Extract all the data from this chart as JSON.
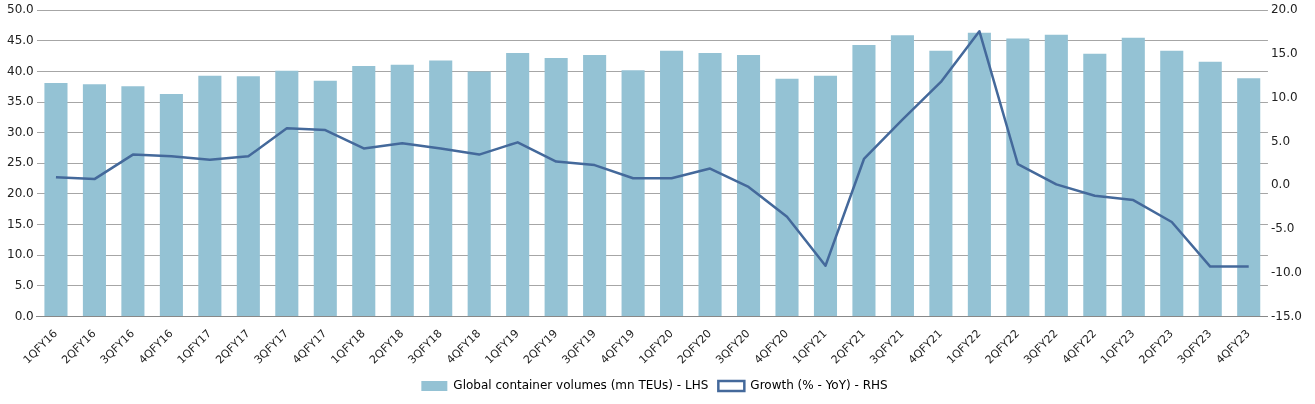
{
  "chart_data": {
    "type": "bar",
    "categories": [
      "1QFY16",
      "2QFY16",
      "3QFY16",
      "4QFY16",
      "1QFY17",
      "2QFY17",
      "3QFY17",
      "4QFY17",
      "1QFY18",
      "2QFY18",
      "3QFY18",
      "4QFY18",
      "1QFY19",
      "2QFY19",
      "3QFY19",
      "4QFY19",
      "1QFY20",
      "2QFY20",
      "3QFY20",
      "4QFY20",
      "1QFY21",
      "2QFY21",
      "3QFY21",
      "4QFY21",
      "1QFY22",
      "2QFY22",
      "3QFY22",
      "4QFY22",
      "1QFY23",
      "2QFY23",
      "3QFY23",
      "4QFY23"
    ],
    "series": [
      {
        "name": "Global container volumes (mn TEUs) - LHS",
        "color": "#94c2d4",
        "values": [
          38.1,
          37.9,
          37.6,
          36.3,
          39.3,
          39.2,
          40.1,
          38.5,
          40.9,
          41.1,
          41.8,
          40.0,
          43.0,
          42.2,
          42.7,
          40.2,
          43.4,
          43.0,
          42.7,
          38.8,
          39.3,
          44.3,
          45.9,
          43.4,
          46.3,
          45.4,
          46.0,
          42.9,
          45.5,
          43.4,
          41.6,
          38.9
        ]
      },
      {
        "name": "Growth (% - YoY) - RHS",
        "type": "line",
        "axis": "y2",
        "color": "#44699b",
        "values": [
          0.9,
          0.7,
          3.5,
          3.3,
          2.9,
          3.3,
          6.5,
          6.3,
          4.2,
          4.8,
          4.2,
          3.5,
          4.9,
          2.7,
          2.3,
          0.8,
          0.8,
          1.9,
          -0.2,
          -3.6,
          -9.2,
          3.0,
          7.5,
          11.8,
          17.6,
          2.4,
          0.1,
          -1.2,
          -1.7,
          -4.2,
          -9.3,
          -9.3
        ]
      }
    ],
    "ylim": [
      0,
      50
    ],
    "yticks": [
      {
        "value": 0,
        "label": "0.0"
      },
      {
        "value": 5,
        "label": "5.0"
      },
      {
        "value": 10,
        "label": "10.0"
      },
      {
        "value": 15,
        "label": "15.0"
      },
      {
        "value": 20,
        "label": "20.0"
      },
      {
        "value": 25,
        "label": "25.0"
      },
      {
        "value": 30,
        "label": "30.0"
      },
      {
        "value": 35,
        "label": "35.0"
      },
      {
        "value": 40,
        "label": "40.0"
      },
      {
        "value": 45,
        "label": "45.0"
      },
      {
        "value": 50,
        "label": "50.0"
      }
    ],
    "y2lim": [
      -15,
      20
    ],
    "y2ticks": [
      {
        "value": -15,
        "label": "-15.0"
      },
      {
        "value": -10,
        "label": "-10.0"
      },
      {
        "value": -5,
        "label": "-5.0"
      },
      {
        "value": 0,
        "label": "0.0"
      },
      {
        "value": 5,
        "label": "5.0"
      },
      {
        "value": 10,
        "label": "10.0"
      },
      {
        "value": 15,
        "label": "15.0"
      },
      {
        "value": 20,
        "label": "20.0"
      }
    ],
    "grid": "y",
    "legend": "bottom",
    "marker": "none",
    "line_style": "solid"
  }
}
